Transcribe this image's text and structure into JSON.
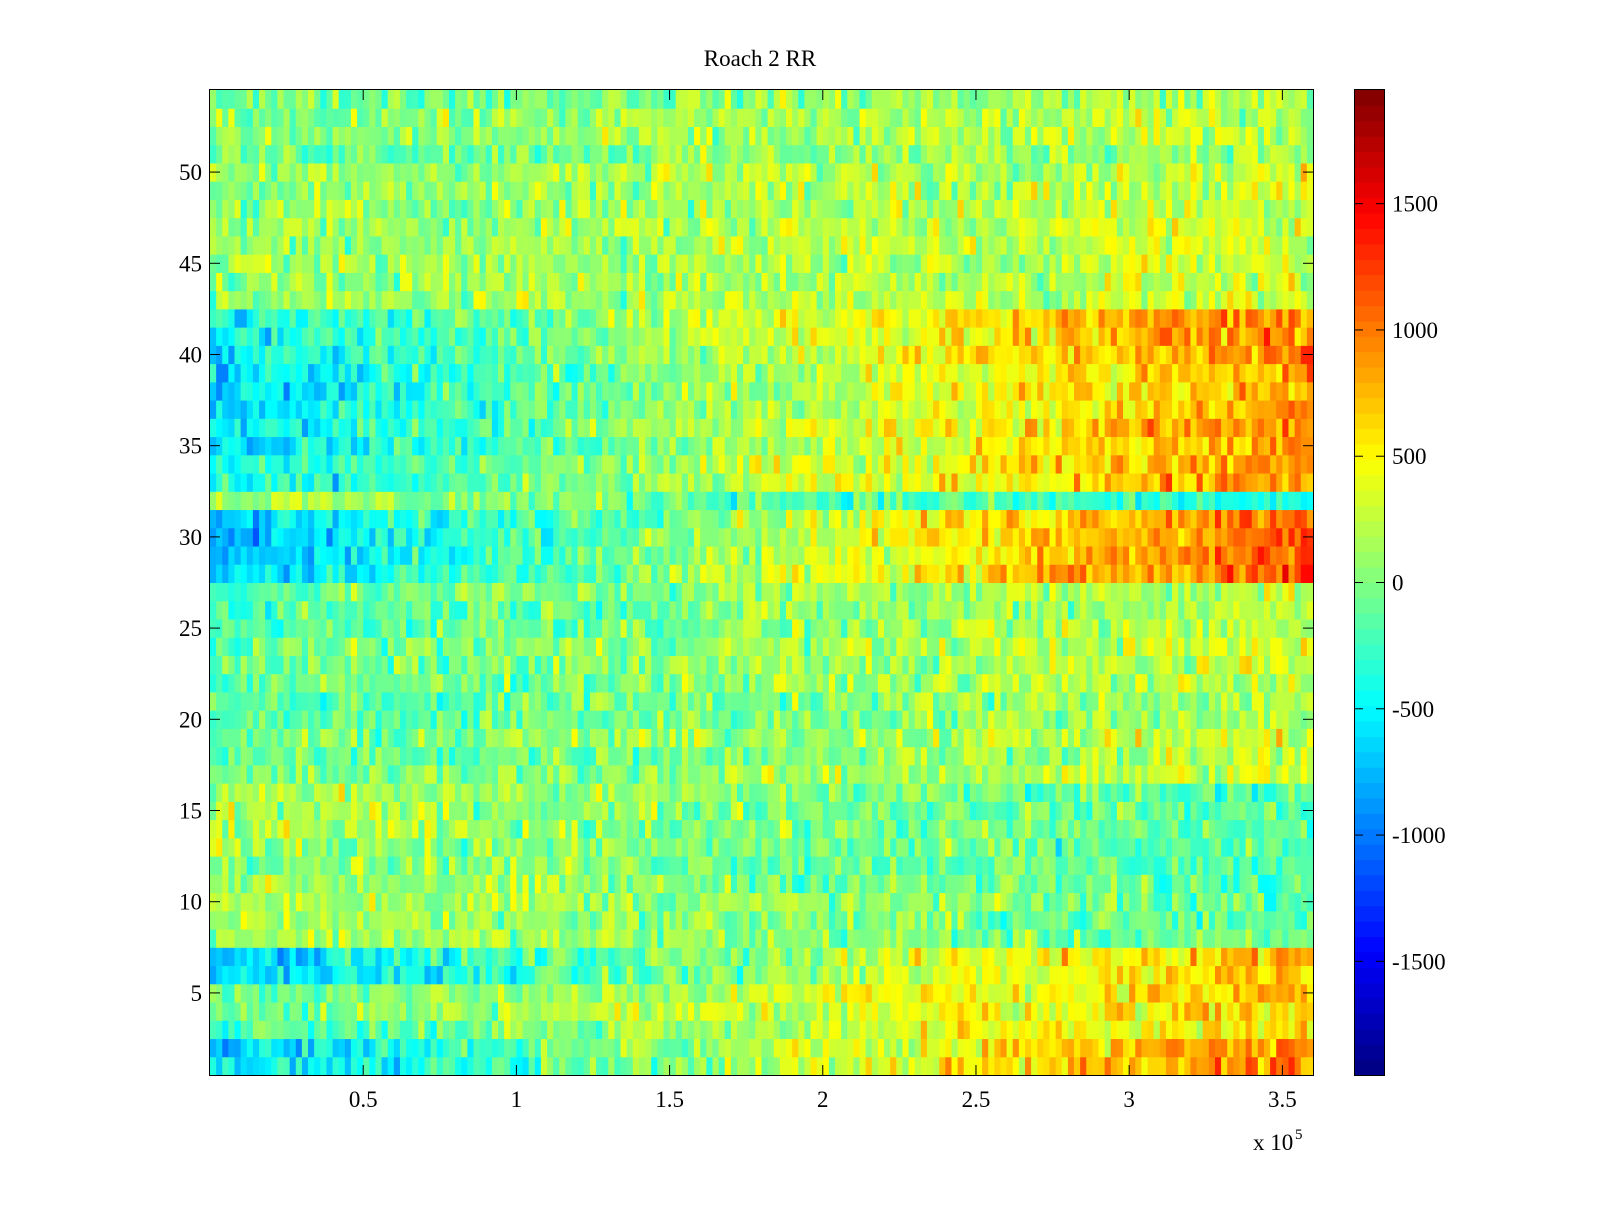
{
  "chart_data": {
    "type": "heatmap",
    "title": "Roach 2 RR",
    "xlabel": "",
    "ylabel": "",
    "x_exponent_label": "x 10",
    "x_exponent_power": "5",
    "x_range": [
      0,
      3.6
    ],
    "x_ticks": [
      0.5,
      1,
      1.5,
      2,
      2.5,
      3,
      3.5
    ],
    "x_tick_labels": [
      "0.5",
      "1",
      "1.5",
      "2",
      "2.5",
      "3",
      "3.5"
    ],
    "y_range": [
      0.5,
      54.5
    ],
    "y_ticks": [
      5,
      10,
      15,
      20,
      25,
      30,
      35,
      40,
      45,
      50
    ],
    "y_tick_labels": [
      "5",
      "10",
      "15",
      "20",
      "25",
      "30",
      "35",
      "40",
      "45",
      "50"
    ],
    "rows": 54,
    "colorbar": {
      "colormap": "jet",
      "range": [
        -1950,
        1950
      ],
      "ticks": [
        -1500,
        -1000,
        -500,
        0,
        500,
        1000,
        1500
      ],
      "tick_labels": [
        "-1500",
        "-1000",
        "-500",
        "0",
        "500",
        "1000",
        "1500"
      ]
    },
    "row_trends": [
      {
        "rows": [
          1,
          2
        ],
        "start": -650,
        "end": 1050
      },
      {
        "rows": [
          3,
          5
        ],
        "start": -150,
        "end": 650
      },
      {
        "rows": [
          6,
          7
        ],
        "start": -650,
        "end": 850
      },
      {
        "rows": [
          8,
          16
        ],
        "start": 200,
        "end": -150
      },
      {
        "rows": [
          17,
          27
        ],
        "start": -150,
        "end": 250
      },
      {
        "rows": [
          28,
          31
        ],
        "start": -700,
        "end": 1200
      },
      {
        "rows": [
          32,
          32
        ],
        "start": 200,
        "end": -400
      },
      {
        "rows": [
          33,
          42
        ],
        "start": -550,
        "end": 950
      },
      {
        "rows": [
          43,
          54
        ],
        "start": 0,
        "end": 250
      }
    ]
  }
}
